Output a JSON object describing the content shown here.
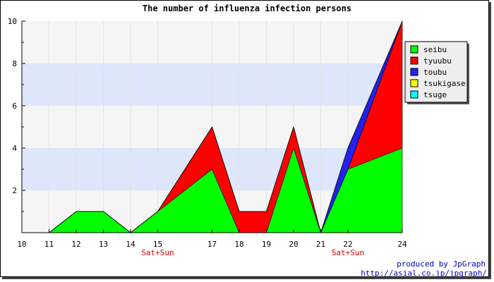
{
  "chart_data": {
    "type": "area",
    "stacked": true,
    "title": "The number of influenza infection persons",
    "x": [
      10,
      11,
      12,
      13,
      14,
      15,
      17,
      18,
      19,
      20,
      21,
      22,
      24
    ],
    "x_tick_labels": [
      "10",
      "11",
      "12",
      "13",
      "14",
      "15",
      "17",
      "18",
      "19",
      "20",
      "21",
      "22",
      "24"
    ],
    "x_sub_labels": [
      {
        "x": "15",
        "text": "Sat+Sun"
      },
      {
        "x": "22",
        "text": "Sat+Sun"
      }
    ],
    "ylim": [
      0,
      10
    ],
    "y_ticks": [
      2,
      4,
      6,
      8,
      10
    ],
    "y_tick_labels": [
      "2",
      "4",
      "6",
      "8",
      "10"
    ],
    "series": [
      {
        "name": "seibu",
        "color": "#00ff00",
        "values": [
          0,
          0,
          1,
          1,
          0,
          1,
          3,
          0,
          0,
          4,
          0,
          3,
          4
        ]
      },
      {
        "name": "tyuubu",
        "color": "#ff0000",
        "values": [
          0,
          0,
          0,
          0,
          0,
          0,
          2,
          1,
          1,
          1,
          0,
          0,
          6
        ]
      },
      {
        "name": "toubu",
        "color": "#2222ee",
        "values": [
          0,
          0,
          0,
          0,
          0,
          0,
          0,
          0,
          0,
          0,
          0,
          1,
          0
        ]
      },
      {
        "name": "tsukigase",
        "color": "#ffff00",
        "values": [
          0,
          0,
          0,
          0,
          0,
          0,
          0,
          0,
          0,
          0,
          0,
          0,
          0
        ]
      },
      {
        "name": "tsuge",
        "color": "#00ffff",
        "values": [
          0,
          0,
          0,
          0,
          0,
          0,
          0,
          0,
          0,
          0,
          0,
          0,
          0
        ]
      }
    ],
    "grid": true,
    "band_colors": [
      "#f5f5f5",
      "#dde6fb"
    ],
    "legend_position": "top-right"
  },
  "credit": {
    "line1": "produced by JpGraph",
    "line2": "http://asial.co.jp/jpgraph/"
  }
}
